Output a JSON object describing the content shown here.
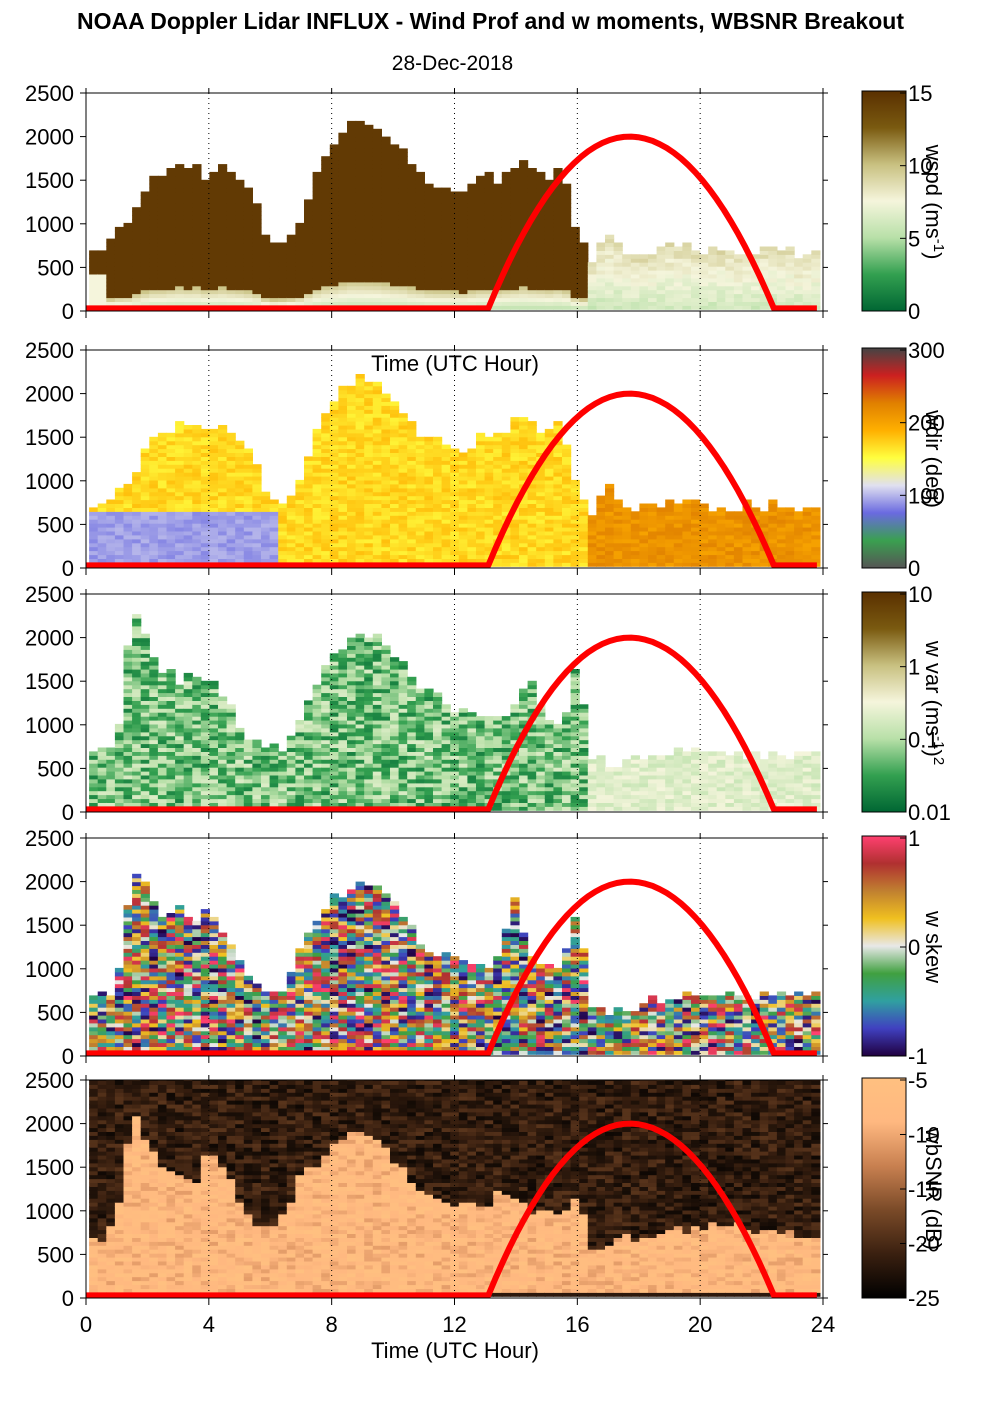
{
  "title": "NOAA Doppler Lidar INFLUX - Wind Prof and w moments, WBSNR Breakout",
  "date": "28-Dec-2018",
  "chart_data": [
    {
      "type": "heatmap",
      "field": "wspd",
      "xlabel": "Time (UTC Hour)",
      "xlim": [
        0,
        24
      ],
      "xticks": [
        "0",
        "4",
        "8",
        "12",
        "16",
        "20",
        "24"
      ],
      "ylim": [
        0,
        2500
      ],
      "yticks": [
        "0",
        "500",
        "1000",
        "1500",
        "2000",
        "2500"
      ],
      "colorbar": {
        "label": "wspd (ms-1)",
        "label_main": "wspd (ms",
        "label_sup": "-1",
        "label_close": ")",
        "ticks": [
          "0",
          "5",
          "10",
          "15"
        ],
        "range": [
          0,
          15
        ],
        "colors": [
          "#006633",
          "#33a050",
          "#b8e0a8",
          "#f5f5dc",
          "#c8c080",
          "#7a5a10",
          "#5a3000"
        ]
      },
      "top_profile_m": [
        [
          0,
          650
        ],
        [
          0.5,
          700
        ],
        [
          1,
          850
        ],
        [
          1.5,
          1000
        ],
        [
          2,
          1450
        ],
        [
          2.5,
          1500
        ],
        [
          3,
          1650
        ],
        [
          3.5,
          1650
        ],
        [
          4,
          1500
        ],
        [
          4.5,
          1700
        ],
        [
          5,
          1450
        ],
        [
          5.5,
          1250
        ],
        [
          6,
          750
        ],
        [
          6.5,
          750
        ],
        [
          7,
          1050
        ],
        [
          7.5,
          1500
        ],
        [
          8,
          1850
        ],
        [
          8.5,
          2100
        ],
        [
          9,
          2200
        ],
        [
          9.5,
          2100
        ],
        [
          10,
          1900
        ],
        [
          10.5,
          1700
        ],
        [
          11,
          1500
        ],
        [
          11.5,
          1400
        ],
        [
          12,
          1300
        ],
        [
          12.5,
          1400
        ],
        [
          13,
          1550
        ],
        [
          13.5,
          1450
        ],
        [
          14,
          1700
        ],
        [
          14.5,
          1650
        ],
        [
          15,
          1500
        ],
        [
          15.5,
          1700
        ],
        [
          16,
          800
        ],
        [
          16.5,
          550
        ],
        [
          17,
          900
        ],
        [
          17.5,
          600
        ],
        [
          18,
          650
        ],
        [
          18.5,
          700
        ],
        [
          19,
          750
        ],
        [
          19.5,
          750
        ],
        [
          20,
          700
        ],
        [
          20.5,
          700
        ],
        [
          21,
          650
        ],
        [
          21.5,
          700
        ],
        [
          22,
          650
        ],
        [
          22.5,
          700
        ],
        [
          23,
          650
        ],
        [
          23.8,
          600
        ]
      ],
      "solar_curve": {
        "color": "#ff0000",
        "start_hour": 13.1,
        "peak_hour": 17.7,
        "end_hour": 22.4,
        "peak_m": 2000
      }
    },
    {
      "type": "heatmap",
      "field": "wdir",
      "xlim": [
        0,
        24
      ],
      "xticks": [
        "0",
        "4",
        "8",
        "12",
        "16",
        "20",
        "24"
      ],
      "ylim": [
        0,
        2500
      ],
      "yticks": [
        "0",
        "500",
        "1000",
        "1500",
        "2000",
        "2500"
      ],
      "colorbar": {
        "label": "wdir (deg)",
        "ticks": [
          "0",
          "100",
          "200",
          "300"
        ],
        "range": [
          0,
          360
        ],
        "colors": [
          "#555555",
          "#3aa050",
          "#6a6ae0",
          "#e0e0f0",
          "#ffff40",
          "#ffb000",
          "#e08000",
          "#cc2020",
          "#444444"
        ]
      },
      "top_profile_m": [
        [
          0,
          650
        ],
        [
          0.5,
          700
        ],
        [
          1,
          850
        ],
        [
          1.5,
          1000
        ],
        [
          2,
          1450
        ],
        [
          2.5,
          1500
        ],
        [
          3,
          1650
        ],
        [
          3.5,
          1650
        ],
        [
          4,
          1500
        ],
        [
          4.5,
          1700
        ],
        [
          5,
          1450
        ],
        [
          5.5,
          1250
        ],
        [
          6,
          750
        ],
        [
          6.5,
          750
        ],
        [
          7,
          1050
        ],
        [
          7.5,
          1500
        ],
        [
          8,
          1850
        ],
        [
          8.5,
          2100
        ],
        [
          9,
          2200
        ],
        [
          9.5,
          2100
        ],
        [
          10,
          1900
        ],
        [
          10.5,
          1700
        ],
        [
          11,
          1500
        ],
        [
          11.5,
          1400
        ],
        [
          12,
          1300
        ],
        [
          12.5,
          1400
        ],
        [
          13,
          1550
        ],
        [
          13.5,
          1450
        ],
        [
          14,
          1700
        ],
        [
          14.5,
          1650
        ],
        [
          15,
          1500
        ],
        [
          15.5,
          1700
        ],
        [
          16,
          800
        ],
        [
          16.5,
          550
        ],
        [
          17,
          900
        ],
        [
          17.5,
          600
        ],
        [
          18,
          650
        ],
        [
          18.5,
          700
        ],
        [
          19,
          750
        ],
        [
          19.5,
          750
        ],
        [
          20,
          700
        ],
        [
          20.5,
          700
        ],
        [
          21,
          650
        ],
        [
          21.5,
          700
        ],
        [
          22,
          650
        ],
        [
          22.5,
          700
        ],
        [
          23,
          650
        ],
        [
          23.8,
          600
        ]
      ],
      "solar_curve": {
        "color": "#ff0000",
        "start_hour": 13.1,
        "peak_hour": 17.7,
        "end_hour": 22.4,
        "peak_m": 2000
      }
    },
    {
      "type": "heatmap",
      "field": "w var",
      "xlim": [
        0,
        24
      ],
      "xticks": [
        "0",
        "4",
        "8",
        "12",
        "16",
        "20",
        "24"
      ],
      "ylim": [
        0,
        2500
      ],
      "yticks": [
        "0",
        "500",
        "1000",
        "1500",
        "2000",
        "2500"
      ],
      "colorbar": {
        "label": "w var (ms-1)2",
        "label_main": "w var (ms",
        "label_sup": "-1",
        "label_close": ")",
        "label_sup2": "2",
        "ticks": [
          "0.01",
          "0.1",
          "1",
          "10"
        ],
        "scale": "log",
        "range": [
          0.01,
          10
        ],
        "colors": [
          "#006633",
          "#33a050",
          "#b8e0a8",
          "#f5f5dc",
          "#c8c080",
          "#7a5a10",
          "#5a3000"
        ]
      },
      "top_profile_m": [
        [
          0.3,
          700
        ],
        [
          1,
          750
        ],
        [
          1.5,
          2350
        ],
        [
          2,
          1900
        ],
        [
          2.5,
          1600
        ],
        [
          3,
          1500
        ],
        [
          3.5,
          1550
        ],
        [
          4,
          1500
        ],
        [
          4.5,
          1350
        ],
        [
          5,
          1000
        ],
        [
          5.5,
          800
        ],
        [
          6,
          700
        ],
        [
          6.5,
          700
        ],
        [
          7,
          1100
        ],
        [
          7.5,
          1400
        ],
        [
          8,
          1800
        ],
        [
          8.5,
          1900
        ],
        [
          9,
          2000
        ],
        [
          9.5,
          2050
        ],
        [
          10,
          1800
        ],
        [
          10.5,
          1600
        ],
        [
          11,
          1400
        ],
        [
          11.5,
          1300
        ],
        [
          12,
          1200
        ],
        [
          12.5,
          1100
        ],
        [
          13,
          1050
        ],
        [
          13.5,
          1100
        ],
        [
          14,
          1200
        ],
        [
          14.5,
          1550
        ],
        [
          15,
          1000
        ],
        [
          15.5,
          900
        ],
        [
          16,
          1700
        ],
        [
          16.5,
          600
        ],
        [
          17,
          550
        ],
        [
          18,
          600
        ],
        [
          19,
          650
        ],
        [
          20,
          700
        ],
        [
          21,
          650
        ],
        [
          22,
          650
        ],
        [
          23,
          650
        ],
        [
          24,
          600
        ]
      ],
      "solar_curve": {
        "color": "#ff0000",
        "start_hour": 13.1,
        "peak_hour": 17.7,
        "end_hour": 22.4,
        "peak_m": 2000
      }
    },
    {
      "type": "heatmap",
      "field": "w skew",
      "xlim": [
        0,
        24
      ],
      "xticks": [
        "0",
        "4",
        "8",
        "12",
        "16",
        "20",
        "24"
      ],
      "ylim": [
        0,
        2500
      ],
      "yticks": [
        "0",
        "500",
        "1000",
        "1500",
        "2000",
        "2500"
      ],
      "colorbar": {
        "label": "w skew",
        "ticks": [
          "-1",
          "0",
          "1"
        ],
        "range": [
          -1,
          1
        ],
        "colors": [
          "#200040",
          "#4040c0",
          "#30a0a0",
          "#40a040",
          "#e8e8e8",
          "#f0c020",
          "#c08030",
          "#b03030",
          "#ff4070"
        ]
      },
      "top_profile_m": [
        [
          0.3,
          650
        ],
        [
          1,
          700
        ],
        [
          1.5,
          2200
        ],
        [
          2,
          1900
        ],
        [
          2.5,
          1600
        ],
        [
          3,
          1700
        ],
        [
          3.5,
          1500
        ],
        [
          4,
          1700
        ],
        [
          4.5,
          1400
        ],
        [
          5,
          1100
        ],
        [
          5.5,
          800
        ],
        [
          6,
          650
        ],
        [
          6.5,
          700
        ],
        [
          7,
          1300
        ],
        [
          7.5,
          1500
        ],
        [
          8,
          1800
        ],
        [
          8.5,
          1900
        ],
        [
          9,
          1950
        ],
        [
          9.5,
          2000
        ],
        [
          10,
          1800
        ],
        [
          10.5,
          1500
        ],
        [
          11,
          1200
        ],
        [
          11.5,
          1100
        ],
        [
          12,
          1100
        ],
        [
          12.5,
          1050
        ],
        [
          13,
          1000
        ],
        [
          13.5,
          1200
        ],
        [
          14,
          1800
        ],
        [
          14.5,
          1100
        ],
        [
          15,
          1000
        ],
        [
          15.5,
          950
        ],
        [
          16,
          1750
        ],
        [
          16.5,
          500
        ],
        [
          17,
          500
        ],
        [
          18,
          550
        ],
        [
          19,
          650
        ],
        [
          20,
          700
        ],
        [
          21,
          700
        ],
        [
          22,
          650
        ],
        [
          23,
          700
        ],
        [
          24,
          650
        ]
      ],
      "solar_curve": {
        "color": "#ff0000",
        "start_hour": 13.1,
        "peak_hour": 17.7,
        "end_hour": 22.4,
        "peak_m": 2000
      }
    },
    {
      "type": "heatmap",
      "field": "wbSNR",
      "xlim": [
        0,
        24
      ],
      "xticks": [
        "0",
        "4",
        "8",
        "12",
        "16",
        "20",
        "24"
      ],
      "ylim": [
        0,
        2500
      ],
      "yticks": [
        "0",
        "500",
        "1000",
        "1500",
        "2000",
        "2500"
      ],
      "colorbar": {
        "label": "wbSNR (dB)",
        "ticks": [
          "-25",
          "-20",
          "-15",
          "-10",
          "-5"
        ],
        "range": [
          -25,
          -5
        ],
        "colors": [
          "#000000",
          "#3a2010",
          "#7a4a28",
          "#c88050",
          "#ffb880",
          "#ffc080"
        ]
      },
      "top_profile_m": [
        [
          0.3,
          600
        ],
        [
          1,
          800
        ],
        [
          1.5,
          2200
        ],
        [
          2,
          1700
        ],
        [
          2.5,
          1500
        ],
        [
          3,
          1400
        ],
        [
          3.5,
          1300
        ],
        [
          4,
          1700
        ],
        [
          4.5,
          1400
        ],
        [
          5,
          1100
        ],
        [
          5.5,
          900
        ],
        [
          6,
          800
        ],
        [
          6.5,
          900
        ],
        [
          7,
          1400
        ],
        [
          7.5,
          1500
        ],
        [
          8,
          1700
        ],
        [
          8.5,
          1800
        ],
        [
          9,
          1900
        ],
        [
          9.5,
          1850
        ],
        [
          10,
          1600
        ],
        [
          10.5,
          1400
        ],
        [
          11,
          1200
        ],
        [
          11.5,
          1100
        ],
        [
          12,
          1000
        ],
        [
          12.5,
          1100
        ],
        [
          13,
          1000
        ],
        [
          13.5,
          1200
        ],
        [
          14,
          1100
        ],
        [
          14.5,
          1000
        ],
        [
          15,
          950
        ],
        [
          15.5,
          900
        ],
        [
          16,
          1200
        ],
        [
          16.5,
          500
        ],
        [
          17,
          600
        ],
        [
          18,
          700
        ],
        [
          19,
          750
        ],
        [
          20,
          800
        ],
        [
          21,
          800
        ],
        [
          22,
          750
        ],
        [
          23,
          700
        ],
        [
          24,
          650
        ]
      ],
      "solar_curve": {
        "color": "#ff0000",
        "start_hour": 13.1,
        "peak_hour": 17.7,
        "end_hour": 22.4,
        "peak_m": 2000
      }
    }
  ]
}
